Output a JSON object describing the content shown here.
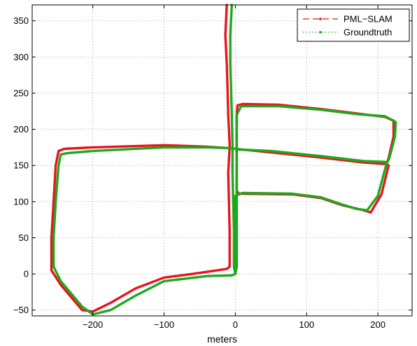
{
  "chart_data": {
    "type": "line",
    "title": "",
    "xlabel": "meters",
    "ylabel": "",
    "xlim": [
      -285,
      248
    ],
    "ylim": [
      -58,
      372
    ],
    "xticks": [
      -200,
      -100,
      0,
      100,
      200
    ],
    "yticks": [
      -50,
      0,
      50,
      100,
      150,
      200,
      250,
      300,
      350
    ],
    "xtick_labels": [
      "−200",
      "−100",
      "0",
      "100",
      "200"
    ],
    "ytick_labels": [
      "−50",
      "0",
      "50",
      "100",
      "150",
      "200",
      "250",
      "300",
      "350"
    ],
    "grid": true,
    "legend_position": "top-right",
    "series": [
      {
        "name": "PML−SLAM",
        "color": "#e8141c",
        "style": "dashed-with-markers",
        "points": [
          [
            -12,
            372
          ],
          [
            -14,
            330
          ],
          [
            -12,
            290
          ],
          [
            -11,
            260
          ],
          [
            -10,
            220
          ],
          [
            -8,
            180
          ],
          [
            -8,
            175
          ],
          [
            -10,
            140
          ],
          [
            -9,
            100
          ],
          [
            -8,
            60
          ],
          [
            -8,
            10
          ],
          [
            -12,
            7
          ],
          [
            -60,
            0
          ],
          [
            -100,
            -5
          ],
          [
            -140,
            -20
          ],
          [
            -175,
            -40
          ],
          [
            -200,
            -52
          ],
          [
            -215,
            -50
          ],
          [
            -245,
            -15
          ],
          [
            -258,
            5
          ],
          [
            -258,
            50
          ],
          [
            -255,
            100
          ],
          [
            -252,
            150
          ],
          [
            -248,
            170
          ],
          [
            -240,
            173
          ],
          [
            -200,
            175
          ],
          [
            -100,
            178
          ],
          [
            -40,
            176
          ],
          [
            -10,
            174
          ],
          [
            0,
            173
          ],
          [
            50,
            168
          ],
          [
            120,
            161
          ],
          [
            180,
            154
          ],
          [
            212,
            152
          ],
          [
            215,
            150
          ],
          [
            205,
            110
          ],
          [
            190,
            85
          ],
          [
            180,
            88
          ],
          [
            150,
            95
          ],
          [
            120,
            105
          ],
          [
            80,
            110
          ],
          [
            5,
            111
          ],
          [
            2,
            115
          ],
          [
            2,
            175
          ],
          [
            2,
            220
          ],
          [
            3,
            233
          ],
          [
            10,
            235
          ],
          [
            60,
            234
          ],
          [
            120,
            228
          ],
          [
            170,
            222
          ],
          [
            210,
            217
          ],
          [
            222,
            212
          ],
          [
            222,
            190
          ],
          [
            215,
            160
          ],
          [
            212,
            152
          ]
        ]
      },
      {
        "name": "Groundtruth",
        "color": "#1fa81f",
        "style": "dotted-with-markers",
        "points": [
          [
            -5,
            372
          ],
          [
            -7,
            330
          ],
          [
            -7,
            290
          ],
          [
            -6,
            260
          ],
          [
            -5,
            220
          ],
          [
            -4,
            180
          ],
          [
            -4,
            174
          ],
          [
            -4,
            140
          ],
          [
            -3,
            100
          ],
          [
            -2,
            60
          ],
          [
            -2,
            10
          ],
          [
            0,
            0
          ],
          [
            -5,
            -2
          ],
          [
            -40,
            -3
          ],
          [
            -100,
            -10
          ],
          [
            -140,
            -30
          ],
          [
            -175,
            -50
          ],
          [
            -200,
            -56
          ],
          [
            -215,
            -45
          ],
          [
            -245,
            -10
          ],
          [
            -255,
            10
          ],
          [
            -255,
            50
          ],
          [
            -252,
            100
          ],
          [
            -248,
            150
          ],
          [
            -245,
            165
          ],
          [
            -236,
            167
          ],
          [
            -200,
            170
          ],
          [
            -100,
            175
          ],
          [
            -40,
            175
          ],
          [
            -6,
            174
          ],
          [
            5,
            172
          ],
          [
            50,
            170
          ],
          [
            120,
            163
          ],
          [
            180,
            156
          ],
          [
            210,
            155
          ],
          [
            212,
            152
          ],
          [
            200,
            108
          ],
          [
            185,
            88
          ],
          [
            170,
            90
          ],
          [
            150,
            96
          ],
          [
            120,
            106
          ],
          [
            80,
            111
          ],
          [
            10,
            112
          ],
          [
            0,
            108
          ],
          [
            0,
            0
          ],
          [
            2,
            10
          ],
          [
            2,
            170
          ],
          [
            2,
            220
          ],
          [
            8,
            232
          ],
          [
            60,
            232
          ],
          [
            120,
            227
          ],
          [
            170,
            221
          ],
          [
            210,
            218
          ],
          [
            225,
            210
          ],
          [
            224,
            190
          ],
          [
            216,
            160
          ],
          [
            212,
            152
          ]
        ]
      }
    ]
  }
}
